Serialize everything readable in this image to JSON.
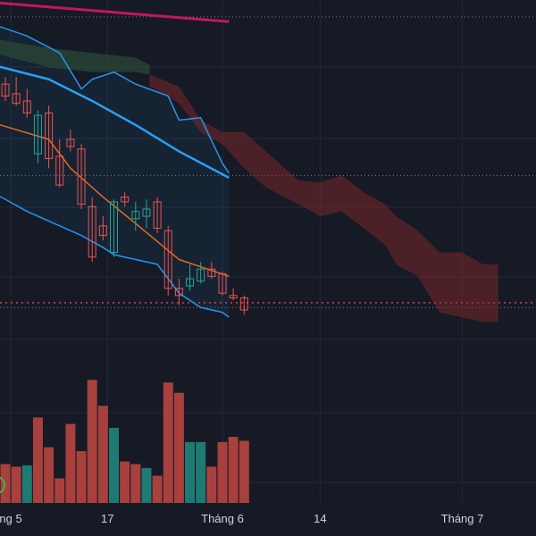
{
  "chart_data": {
    "type": "candlestick",
    "title": "",
    "xlabel": "",
    "ylabel": "",
    "grid": true,
    "x_ticks": [
      {
        "label": "ng 5",
        "index": 0.5
      },
      {
        "label": "17",
        "index": 9.4
      },
      {
        "label": "Tháng 6",
        "index": 20.0
      },
      {
        "label": "14",
        "index": 29.0
      },
      {
        "label": "Tháng 7",
        "index": 42.1
      }
    ],
    "price_ylim": [
      -115,
      30
    ],
    "volume_ylim": [
      0,
      100
    ],
    "candles": [
      {
        "o": -5,
        "h": -2,
        "l": -12,
        "c": -10,
        "color": "down"
      },
      {
        "o": -9,
        "h": -2,
        "l": -14,
        "c": -13,
        "color": "down"
      },
      {
        "o": -12,
        "h": -7,
        "l": -19,
        "c": -17,
        "color": "down"
      },
      {
        "o": -18,
        "h": -16,
        "l": -38,
        "c": -34,
        "color": "up"
      },
      {
        "o": -17,
        "h": -14,
        "l": -40,
        "c": -36,
        "color": "down"
      },
      {
        "o": -35,
        "h": -28,
        "l": -48,
        "c": -47,
        "color": "down"
      },
      {
        "o": -28,
        "h": -24,
        "l": -33,
        "c": -31,
        "color": "down"
      },
      {
        "o": -32,
        "h": -30,
        "l": -57,
        "c": -55,
        "color": "down"
      },
      {
        "o": -56,
        "h": -52,
        "l": -79,
        "c": -77,
        "color": "down"
      },
      {
        "o": -64,
        "h": -60,
        "l": -70,
        "c": -68,
        "color": "down"
      },
      {
        "o": -75,
        "h": -53,
        "l": -77,
        "c": -54,
        "color": "up"
      },
      {
        "o": -52,
        "h": -50,
        "l": -56,
        "c": -54,
        "color": "down"
      },
      {
        "o": -58,
        "h": -54,
        "l": -66,
        "c": -61,
        "color": "up"
      },
      {
        "o": -57,
        "h": -53,
        "l": -65,
        "c": -60,
        "color": "up"
      },
      {
        "o": -54,
        "h": -52,
        "l": -67,
        "c": -65,
        "color": "down"
      },
      {
        "o": -66,
        "h": -64,
        "l": -93,
        "c": -90,
        "color": "down"
      },
      {
        "o": -90,
        "h": -86,
        "l": -97,
        "c": -93,
        "color": "down"
      },
      {
        "o": -89,
        "h": -80,
        "l": -91,
        "c": -86,
        "color": "up"
      },
      {
        "o": -87,
        "h": -79,
        "l": -88,
        "c": -82,
        "color": "up"
      },
      {
        "o": -82,
        "h": -79,
        "l": -86,
        "c": -85,
        "color": "down"
      },
      {
        "o": -84,
        "h": -83,
        "l": -93,
        "c": -92,
        "color": "down"
      },
      {
        "o": -93,
        "h": -90,
        "l": -95,
        "c": -94,
        "color": "down"
      },
      {
        "o": -94,
        "h": -93,
        "l": -101,
        "c": -99,
        "color": "down"
      }
    ],
    "volume": [
      {
        "v": 30,
        "color": "down"
      },
      {
        "v": 28,
        "color": "down"
      },
      {
        "v": 29,
        "color": "up"
      },
      {
        "v": 66,
        "color": "down"
      },
      {
        "v": 43,
        "color": "down"
      },
      {
        "v": 19,
        "color": "down"
      },
      {
        "v": 61,
        "color": "down"
      },
      {
        "v": 40,
        "color": "down"
      },
      {
        "v": 95,
        "color": "down"
      },
      {
        "v": 75,
        "color": "down"
      },
      {
        "v": 58,
        "color": "up"
      },
      {
        "v": 32,
        "color": "down"
      },
      {
        "v": 30,
        "color": "down"
      },
      {
        "v": 27,
        "color": "up"
      },
      {
        "v": 21,
        "color": "down"
      },
      {
        "v": 93,
        "color": "down"
      },
      {
        "v": 85,
        "color": "down"
      },
      {
        "v": 47,
        "color": "up"
      },
      {
        "v": 47,
        "color": "up"
      },
      {
        "v": 28,
        "color": "down"
      },
      {
        "v": 47,
        "color": "down"
      },
      {
        "v": 51,
        "color": "down"
      },
      {
        "v": 48,
        "color": "down"
      }
    ],
    "indicators": {
      "ma_long": {
        "color": "#c2185b",
        "points": [
          [
            -1.2,
            29
          ],
          [
            20.6,
            21
          ]
        ]
      },
      "bb_upper": {
        "color": "#2196f3",
        "points": [
          [
            -1.2,
            20
          ],
          [
            2,
            15
          ],
          [
            5,
            8
          ],
          [
            7,
            -7
          ],
          [
            8,
            -3
          ],
          [
            10,
            0
          ],
          [
            12,
            -5
          ],
          [
            15,
            -10
          ],
          [
            16,
            -20
          ],
          [
            18,
            -19
          ],
          [
            20,
            -38
          ],
          [
            20.6,
            -42
          ]
        ]
      },
      "bb_middle": {
        "color": "#29a0f5",
        "points": [
          [
            -1.2,
            3
          ],
          [
            4,
            -3
          ],
          [
            8,
            -12
          ],
          [
            12,
            -22
          ],
          [
            16,
            -33
          ],
          [
            20.6,
            -44
          ]
        ]
      },
      "bb_lower": {
        "color": "#2196f3",
        "points": [
          [
            -1.2,
            -50
          ],
          [
            2,
            -58
          ],
          [
            4,
            -62
          ],
          [
            7,
            -68
          ],
          [
            9,
            -73
          ],
          [
            10,
            -76
          ],
          [
            14,
            -80
          ],
          [
            16,
            -92
          ],
          [
            18,
            -98
          ],
          [
            20,
            -100
          ],
          [
            20.6,
            -102
          ]
        ]
      },
      "ma_mid": {
        "color": "#e46a1a",
        "points": [
          [
            -1.2,
            -21
          ],
          [
            4,
            -28
          ],
          [
            6,
            -40
          ],
          [
            9,
            -52
          ],
          [
            12,
            -63
          ],
          [
            16,
            -78
          ],
          [
            20.6,
            -85
          ]
        ]
      },
      "last_price": -96,
      "last_price_color": "#f23645"
    },
    "cloud_band": {
      "color": "#8c2a2a",
      "upper": [
        [
          13.3,
          -1
        ],
        [
          16,
          -6
        ],
        [
          18,
          -20
        ],
        [
          20,
          -25
        ],
        [
          22,
          -25
        ],
        [
          24,
          -33
        ],
        [
          27,
          -45
        ],
        [
          29,
          -46
        ],
        [
          31,
          -43
        ],
        [
          33,
          -50
        ],
        [
          35,
          -55
        ],
        [
          36,
          -60
        ],
        [
          38,
          -66
        ],
        [
          40,
          -75
        ],
        [
          42,
          -75
        ],
        [
          44,
          -80
        ],
        [
          45.4,
          -80
        ]
      ],
      "lower": [
        [
          13.3,
          -6
        ],
        [
          16,
          -13
        ],
        [
          18,
          -25
        ],
        [
          20,
          -30
        ],
        [
          22,
          -40
        ],
        [
          24,
          -48
        ],
        [
          27,
          -55
        ],
        [
          29,
          -60
        ],
        [
          31,
          -58
        ],
        [
          33,
          -65
        ],
        [
          35,
          -72
        ],
        [
          36,
          -80
        ],
        [
          38,
          -85
        ],
        [
          40,
          -100
        ],
        [
          42,
          -102
        ],
        [
          44,
          -104
        ],
        [
          45.4,
          -104
        ]
      ]
    },
    "green_cloud": {
      "color": "#2b4a36",
      "upper": [
        [
          -1.2,
          14
        ],
        [
          4,
          10
        ],
        [
          8,
          8
        ],
        [
          12,
          6
        ],
        [
          13.3,
          3
        ]
      ],
      "lower": [
        [
          -1.2,
          8
        ],
        [
          4,
          2
        ],
        [
          8,
          0
        ],
        [
          12,
          0
        ],
        [
          13.3,
          -1
        ]
      ]
    },
    "reference_lines": [
      23,
      -43,
      -98
    ]
  }
}
